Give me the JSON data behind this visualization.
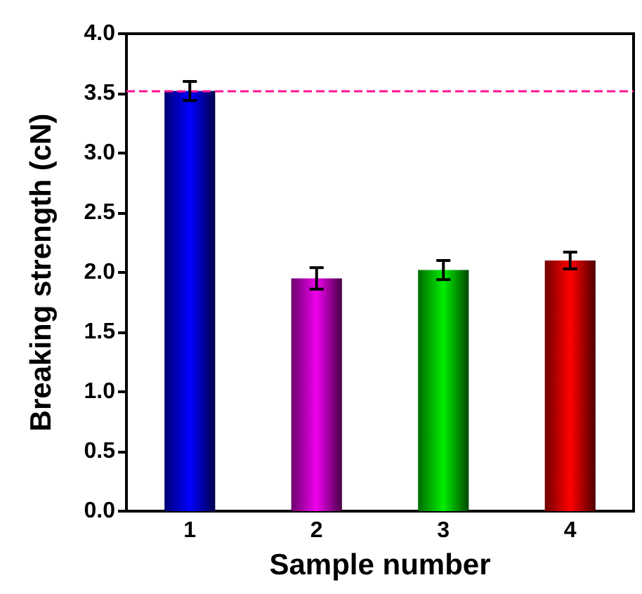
{
  "chart_data": {
    "type": "bar",
    "xlabel": "Sample number",
    "ylabel": "Breaking strength (cN)",
    "categories": [
      "1",
      "2",
      "3",
      "4"
    ],
    "values": [
      3.52,
      1.95,
      2.02,
      2.1
    ],
    "errors": [
      0.08,
      0.09,
      0.08,
      0.07
    ],
    "colors": [
      "#0000ff",
      "#ee00ee",
      "#00ee00",
      "#ff0000"
    ],
    "ylim": [
      0,
      4
    ],
    "yticks": [
      {
        "value": 0,
        "label": "0.0"
      },
      {
        "value": 0.5,
        "label": "0.5"
      },
      {
        "value": 1,
        "label": "1.0"
      },
      {
        "value": 1.5,
        "label": "1.5"
      },
      {
        "value": 2,
        "label": "2.0"
      },
      {
        "value": 2.5,
        "label": "2.5"
      },
      {
        "value": 3,
        "label": "3.0"
      },
      {
        "value": 3.5,
        "label": "3.5"
      },
      {
        "value": 4,
        "label": "4.0"
      }
    ],
    "ref_lines": [
      {
        "axis": "y",
        "value": 3.52,
        "color": "#ff1493",
        "line_style": "dashed"
      }
    ],
    "grid": false
  }
}
